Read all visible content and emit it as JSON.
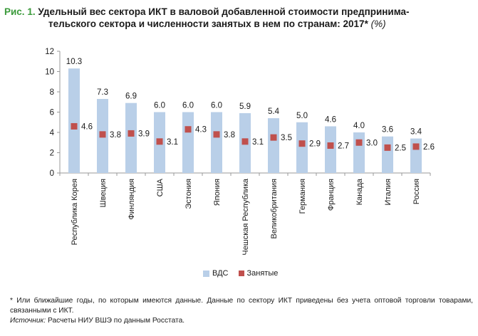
{
  "title": {
    "fig_label": "Рис. 1.",
    "line1": "Удельный вес сектора ИКТ в валовой добавленной стоимости предпринима-",
    "line2": "тельского сектора и численности занятых в нем по странам: 2017*",
    "unit": "(%)"
  },
  "legend": {
    "bar_label": "ВДС",
    "marker_label": "Занятые"
  },
  "footnote": {
    "note": "* Или ближайшие годы, по которым имеются данные. Данные по сектору ИКТ приведены без учета оптовой торговли товарами, связанными с ИКТ.",
    "source_label": "Источник:",
    "source_text": " Расчеты НИУ ВШЭ по данным Росстата."
  },
  "colors": {
    "bar": "#b9cfe8",
    "marker": "#c0504d",
    "axis": "#9a9a9a",
    "title_accent": "#3a9a3a"
  },
  "chart_data": {
    "type": "bar",
    "categories": [
      "Республика Корея",
      "Швеция",
      "Финляндия",
      "США",
      "Эстония",
      "Япония",
      "Чешская Республика",
      "Великобритания",
      "Германия",
      "Франция",
      "Канада",
      "Италия",
      "Россия"
    ],
    "series": [
      {
        "name": "ВДС",
        "type": "bar",
        "values": [
          10.3,
          7.3,
          6.9,
          6.0,
          6.0,
          6.0,
          5.9,
          5.4,
          5.0,
          4.6,
          4.0,
          3.6,
          3.4
        ]
      },
      {
        "name": "Занятые",
        "type": "marker",
        "values": [
          4.6,
          3.8,
          3.9,
          3.1,
          4.3,
          3.8,
          3.1,
          3.5,
          2.9,
          2.7,
          3.0,
          2.5,
          2.6
        ]
      }
    ],
    "ylim": [
      0,
      12
    ],
    "yticks": [
      "0",
      "2",
      "4",
      "6",
      "8",
      "10",
      "12"
    ],
    "xlabel": "",
    "ylabel": "",
    "grid": false,
    "legend_position": "bottom"
  }
}
